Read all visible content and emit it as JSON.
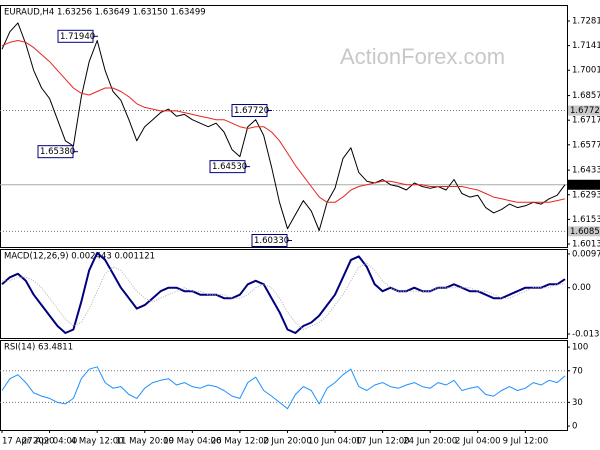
{
  "watermark": "ActionForex.com",
  "chart_data": [
    {
      "type": "line",
      "title": "EURAUD,H4  1.63256 1.63649 1.63150 1.63499",
      "ylim": [
        1.5996,
        1.7372
      ],
      "yticks": [
        {
          "value": 1.7281,
          "label": "1.72810"
        },
        {
          "value": 1.7141,
          "label": "1.71410"
        },
        {
          "value": 1.7001,
          "label": "1.70010"
        },
        {
          "value": 1.6857,
          "label": "1.68570"
        },
        {
          "value": 1.6717,
          "label": "1.67170"
        },
        {
          "value": 1.6577,
          "label": "1.65770"
        },
        {
          "value": 1.6433,
          "label": "1.64330"
        },
        {
          "value": 1.6293,
          "label": "1.62930"
        },
        {
          "value": 1.6153,
          "label": "1.61530"
        },
        {
          "value": 1.6013,
          "label": "1.60130"
        }
      ],
      "series": [
        {
          "color": "#000000",
          "width": 1,
          "values": [
            1.712,
            1.722,
            1.727,
            1.715,
            1.7,
            1.69,
            1.684,
            1.672,
            1.66,
            1.657,
            1.685,
            1.705,
            1.717,
            1.7,
            1.688,
            1.683,
            1.672,
            1.66,
            1.668,
            1.672,
            1.676,
            1.678,
            1.674,
            1.675,
            1.672,
            1.67,
            1.668,
            1.67,
            1.665,
            1.655,
            1.651,
            1.668,
            1.672,
            1.663,
            1.645,
            1.625,
            1.61,
            1.618,
            1.626,
            1.62,
            1.609,
            1.625,
            1.633,
            1.65,
            1.656,
            1.642,
            1.637,
            1.636,
            1.638,
            1.635,
            1.634,
            1.632,
            1.636,
            1.634,
            1.633,
            1.634,
            1.632,
            1.638,
            1.63,
            1.628,
            1.629,
            1.622,
            1.619,
            1.621,
            1.624,
            1.622,
            1.623,
            1.625,
            1.624,
            1.627,
            1.629,
            1.635
          ]
        },
        {
          "color": "#e8251f",
          "width": 1,
          "values": [
            1.714,
            1.716,
            1.717,
            1.716,
            1.713,
            1.709,
            1.705,
            1.7,
            1.695,
            1.69,
            1.687,
            1.686,
            1.688,
            1.69,
            1.69,
            1.688,
            1.685,
            1.681,
            1.679,
            1.678,
            1.677,
            1.677,
            1.677,
            1.676,
            1.675,
            1.674,
            1.673,
            1.672,
            1.672,
            1.67,
            1.668,
            1.667,
            1.668,
            1.668,
            1.665,
            1.66,
            1.653,
            1.646,
            1.64,
            1.634,
            1.628,
            1.625,
            1.625,
            1.628,
            1.632,
            1.634,
            1.635,
            1.636,
            1.637,
            1.637,
            1.636,
            1.635,
            1.635,
            1.635,
            1.634,
            1.634,
            1.634,
            1.634,
            1.634,
            1.633,
            1.632,
            1.63,
            1.628,
            1.627,
            1.626,
            1.625,
            1.625,
            1.625,
            1.625,
            1.625,
            1.626,
            1.627
          ]
        }
      ],
      "levels": [
        {
          "value": 1.6772,
          "label": "1.67720"
        },
        {
          "value": 1.6085,
          "label": "1.60850"
        }
      ],
      "current": {
        "value": 1.63499,
        "label": "1.63499"
      },
      "annotations": [
        {
          "value": 1.7194,
          "label": "1.71940"
        },
        {
          "value": 1.6538,
          "label": "1.65380"
        },
        {
          "value": 1.6772,
          "label": "1.67720"
        },
        {
          "value": 1.6453,
          "label": "1.64530"
        },
        {
          "value": 1.6033,
          "label": "1.60330"
        }
      ]
    },
    {
      "type": "line",
      "title": "MACD(12,26,9) 0.002443 0.001121",
      "ylim": [
        -0.01444,
        0.01113
      ],
      "yticks": [
        0.009713,
        {
          "value": 0,
          "label": "0.00"
        },
        -0.013302
      ],
      "series": [
        {
          "color": "#000080",
          "width": 2,
          "values": [
            0.001,
            0.003,
            0.004,
            0.002,
            -0.002,
            -0.005,
            -0.008,
            -0.011,
            -0.013,
            -0.012,
            -0.004,
            0.005,
            0.01,
            0.008,
            0.004,
            0.0,
            -0.003,
            -0.006,
            -0.005,
            -0.003,
            -0.001,
            0.0,
            0.0,
            -0.001,
            -0.001,
            -0.002,
            -0.002,
            -0.002,
            -0.003,
            -0.003,
            -0.002,
            0.001,
            0.002,
            0.001,
            -0.003,
            -0.007,
            -0.012,
            -0.013,
            -0.011,
            -0.01,
            -0.008,
            -0.005,
            -0.002,
            0.003,
            0.008,
            0.009,
            0.006,
            0.001,
            -0.001,
            0.0,
            -0.001,
            -0.001,
            0.0,
            -0.001,
            -0.001,
            0.0,
            0.0,
            0.001,
            0.0,
            -0.001,
            -0.001,
            -0.002,
            -0.003,
            -0.003,
            -0.002,
            -0.001,
            0.0,
            0.0,
            0.0,
            0.001,
            0.001,
            0.002443
          ]
        },
        {
          "color": "#b0b0b0",
          "width": 1,
          "style": "dotted",
          "values": [
            0.002,
            0.002,
            0.003,
            0.003,
            0.002,
            0.0,
            -0.003,
            -0.006,
            -0.009,
            -0.011,
            -0.01,
            -0.006,
            -0.001,
            0.004,
            0.006,
            0.005,
            0.002,
            -0.001,
            -0.003,
            -0.004,
            -0.003,
            -0.002,
            -0.001,
            0.0,
            -0.001,
            -0.001,
            -0.002,
            -0.002,
            -0.002,
            -0.003,
            -0.003,
            -0.002,
            0.0,
            0.001,
            0.0,
            -0.003,
            -0.007,
            -0.01,
            -0.012,
            -0.011,
            -0.01,
            -0.008,
            -0.005,
            -0.002,
            0.002,
            0.006,
            0.007,
            0.005,
            0.002,
            0.0,
            -0.001,
            -0.001,
            -0.001,
            -0.001,
            -0.001,
            0.0,
            0.0,
            0.0,
            0.0,
            0.0,
            -0.001,
            -0.001,
            -0.002,
            -0.003,
            -0.003,
            -0.002,
            -0.001,
            0.0,
            0.0,
            0.0,
            0.001,
            0.001121
          ]
        }
      ]
    },
    {
      "type": "line",
      "title": "RSI(14) 63.4811",
      "ylim": [
        -5,
        109
      ],
      "yticks": [
        100,
        70,
        30,
        0
      ],
      "levels": [
        {
          "value": 70
        },
        {
          "value": 30
        }
      ],
      "categories": [
        "17 Apr 2020",
        null,
        null,
        null,
        null,
        null,
        "27 Apr 04:00",
        null,
        null,
        null,
        null,
        null,
        "4 May 12:00",
        null,
        null,
        null,
        null,
        null,
        "11 May 20:00",
        null,
        null,
        null,
        null,
        null,
        "19 May 04:00",
        null,
        null,
        null,
        null,
        null,
        "26 May 12:00",
        null,
        null,
        null,
        null,
        null,
        "2 Jun 20:00",
        null,
        null,
        null,
        null,
        null,
        "10 Jun 04:00",
        null,
        null,
        null,
        null,
        null,
        "17 Jun 12:00",
        null,
        null,
        null,
        null,
        null,
        "24 Jun 20:00",
        null,
        null,
        null,
        null,
        null,
        "2 Jul 04:00",
        null,
        null,
        null,
        null,
        null,
        "9 Jul 12:00",
        null,
        null,
        null,
        null,
        null
      ],
      "series": [
        {
          "color": "#1e90ff",
          "width": 1,
          "values": [
            45,
            60,
            65,
            55,
            42,
            38,
            35,
            30,
            28,
            35,
            60,
            72,
            75,
            55,
            48,
            50,
            40,
            35,
            48,
            55,
            58,
            60,
            52,
            55,
            50,
            48,
            52,
            50,
            45,
            38,
            35,
            55,
            62,
            45,
            38,
            30,
            22,
            40,
            50,
            45,
            28,
            48,
            55,
            65,
            72,
            50,
            45,
            52,
            55,
            50,
            48,
            52,
            55,
            50,
            48,
            55,
            52,
            58,
            45,
            48,
            50,
            40,
            38,
            45,
            50,
            45,
            48,
            55,
            52,
            58,
            55,
            63.4811
          ]
        }
      ]
    }
  ]
}
